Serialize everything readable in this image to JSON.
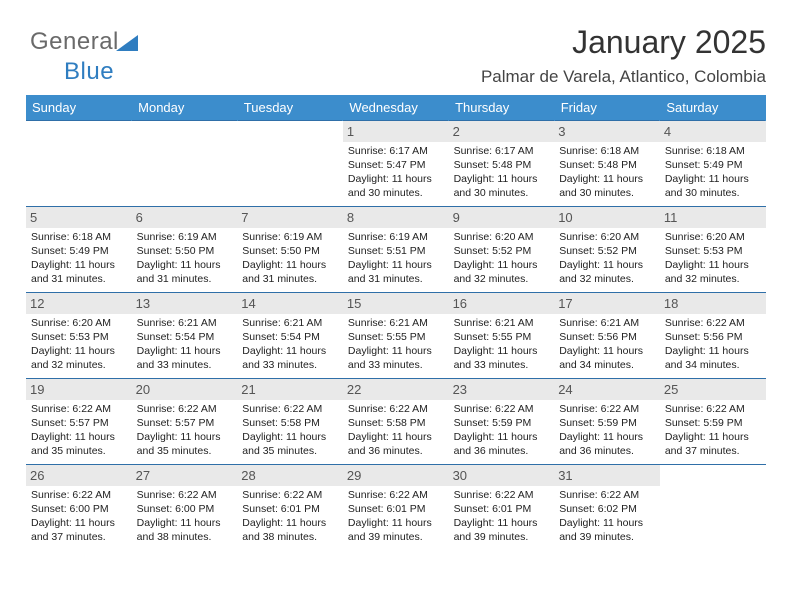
{
  "logo": {
    "text_a": "General",
    "text_b": "Blue"
  },
  "title": "January 2025",
  "location": "Palmar de Varela, Atlantico, Colombia",
  "colors": {
    "header_bg": "#3c8dcc",
    "header_text": "#ffffff",
    "row_border": "#2f6fa8",
    "daynum_bg": "#e9e9e9",
    "daynum_text": "#555555",
    "body_text": "#222222",
    "title_text": "#333333",
    "location_text": "#444444",
    "logo_gray": "#6a6a6a",
    "logo_blue": "#2f7dc0",
    "background": "#ffffff"
  },
  "typography": {
    "title_fontsize": 32,
    "location_fontsize": 17,
    "header_fontsize": 13,
    "daynum_fontsize": 13,
    "cell_fontsize": 10.5
  },
  "calendar": {
    "type": "table",
    "columns": [
      "Sunday",
      "Monday",
      "Tuesday",
      "Wednesday",
      "Thursday",
      "Friday",
      "Saturday"
    ],
    "weeks": [
      [
        {
          "day": "",
          "lines": []
        },
        {
          "day": "",
          "lines": []
        },
        {
          "day": "",
          "lines": []
        },
        {
          "day": "1",
          "lines": [
            "Sunrise: 6:17 AM",
            "Sunset: 5:47 PM",
            "Daylight: 11 hours and 30 minutes."
          ]
        },
        {
          "day": "2",
          "lines": [
            "Sunrise: 6:17 AM",
            "Sunset: 5:48 PM",
            "Daylight: 11 hours and 30 minutes."
          ]
        },
        {
          "day": "3",
          "lines": [
            "Sunrise: 6:18 AM",
            "Sunset: 5:48 PM",
            "Daylight: 11 hours and 30 minutes."
          ]
        },
        {
          "day": "4",
          "lines": [
            "Sunrise: 6:18 AM",
            "Sunset: 5:49 PM",
            "Daylight: 11 hours and 30 minutes."
          ]
        }
      ],
      [
        {
          "day": "5",
          "lines": [
            "Sunrise: 6:18 AM",
            "Sunset: 5:49 PM",
            "Daylight: 11 hours and 31 minutes."
          ]
        },
        {
          "day": "6",
          "lines": [
            "Sunrise: 6:19 AM",
            "Sunset: 5:50 PM",
            "Daylight: 11 hours and 31 minutes."
          ]
        },
        {
          "day": "7",
          "lines": [
            "Sunrise: 6:19 AM",
            "Sunset: 5:50 PM",
            "Daylight: 11 hours and 31 minutes."
          ]
        },
        {
          "day": "8",
          "lines": [
            "Sunrise: 6:19 AM",
            "Sunset: 5:51 PM",
            "Daylight: 11 hours and 31 minutes."
          ]
        },
        {
          "day": "9",
          "lines": [
            "Sunrise: 6:20 AM",
            "Sunset: 5:52 PM",
            "Daylight: 11 hours and 32 minutes."
          ]
        },
        {
          "day": "10",
          "lines": [
            "Sunrise: 6:20 AM",
            "Sunset: 5:52 PM",
            "Daylight: 11 hours and 32 minutes."
          ]
        },
        {
          "day": "11",
          "lines": [
            "Sunrise: 6:20 AM",
            "Sunset: 5:53 PM",
            "Daylight: 11 hours and 32 minutes."
          ]
        }
      ],
      [
        {
          "day": "12",
          "lines": [
            "Sunrise: 6:20 AM",
            "Sunset: 5:53 PM",
            "Daylight: 11 hours and 32 minutes."
          ]
        },
        {
          "day": "13",
          "lines": [
            "Sunrise: 6:21 AM",
            "Sunset: 5:54 PM",
            "Daylight: 11 hours and 33 minutes."
          ]
        },
        {
          "day": "14",
          "lines": [
            "Sunrise: 6:21 AM",
            "Sunset: 5:54 PM",
            "Daylight: 11 hours and 33 minutes."
          ]
        },
        {
          "day": "15",
          "lines": [
            "Sunrise: 6:21 AM",
            "Sunset: 5:55 PM",
            "Daylight: 11 hours and 33 minutes."
          ]
        },
        {
          "day": "16",
          "lines": [
            "Sunrise: 6:21 AM",
            "Sunset: 5:55 PM",
            "Daylight: 11 hours and 33 minutes."
          ]
        },
        {
          "day": "17",
          "lines": [
            "Sunrise: 6:21 AM",
            "Sunset: 5:56 PM",
            "Daylight: 11 hours and 34 minutes."
          ]
        },
        {
          "day": "18",
          "lines": [
            "Sunrise: 6:22 AM",
            "Sunset: 5:56 PM",
            "Daylight: 11 hours and 34 minutes."
          ]
        }
      ],
      [
        {
          "day": "19",
          "lines": [
            "Sunrise: 6:22 AM",
            "Sunset: 5:57 PM",
            "Daylight: 11 hours and 35 minutes."
          ]
        },
        {
          "day": "20",
          "lines": [
            "Sunrise: 6:22 AM",
            "Sunset: 5:57 PM",
            "Daylight: 11 hours and 35 minutes."
          ]
        },
        {
          "day": "21",
          "lines": [
            "Sunrise: 6:22 AM",
            "Sunset: 5:58 PM",
            "Daylight: 11 hours and 35 minutes."
          ]
        },
        {
          "day": "22",
          "lines": [
            "Sunrise: 6:22 AM",
            "Sunset: 5:58 PM",
            "Daylight: 11 hours and 36 minutes."
          ]
        },
        {
          "day": "23",
          "lines": [
            "Sunrise: 6:22 AM",
            "Sunset: 5:59 PM",
            "Daylight: 11 hours and 36 minutes."
          ]
        },
        {
          "day": "24",
          "lines": [
            "Sunrise: 6:22 AM",
            "Sunset: 5:59 PM",
            "Daylight: 11 hours and 36 minutes."
          ]
        },
        {
          "day": "25",
          "lines": [
            "Sunrise: 6:22 AM",
            "Sunset: 5:59 PM",
            "Daylight: 11 hours and 37 minutes."
          ]
        }
      ],
      [
        {
          "day": "26",
          "lines": [
            "Sunrise: 6:22 AM",
            "Sunset: 6:00 PM",
            "Daylight: 11 hours and 37 minutes."
          ]
        },
        {
          "day": "27",
          "lines": [
            "Sunrise: 6:22 AM",
            "Sunset: 6:00 PM",
            "Daylight: 11 hours and 38 minutes."
          ]
        },
        {
          "day": "28",
          "lines": [
            "Sunrise: 6:22 AM",
            "Sunset: 6:01 PM",
            "Daylight: 11 hours and 38 minutes."
          ]
        },
        {
          "day": "29",
          "lines": [
            "Sunrise: 6:22 AM",
            "Sunset: 6:01 PM",
            "Daylight: 11 hours and 39 minutes."
          ]
        },
        {
          "day": "30",
          "lines": [
            "Sunrise: 6:22 AM",
            "Sunset: 6:01 PM",
            "Daylight: 11 hours and 39 minutes."
          ]
        },
        {
          "day": "31",
          "lines": [
            "Sunrise: 6:22 AM",
            "Sunset: 6:02 PM",
            "Daylight: 11 hours and 39 minutes."
          ]
        },
        {
          "day": "",
          "lines": []
        }
      ]
    ]
  }
}
